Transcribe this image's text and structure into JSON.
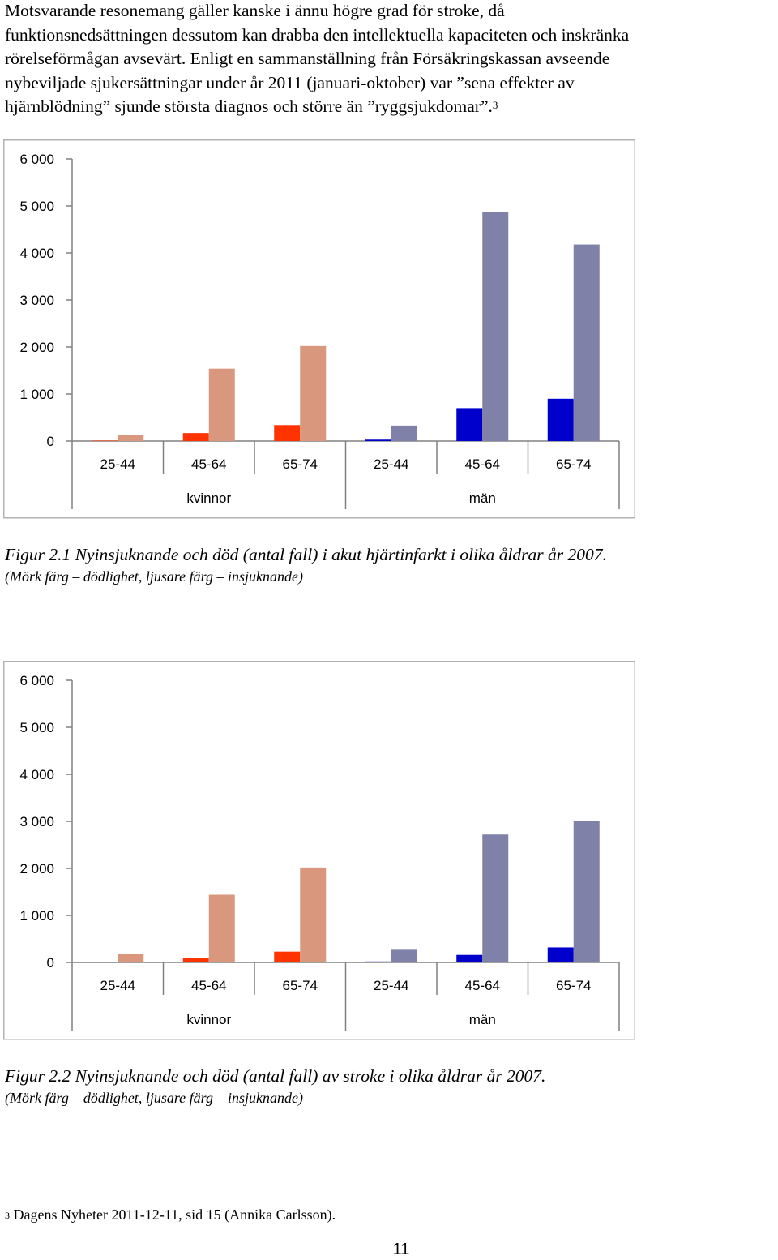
{
  "paragraph": {
    "lines": [
      "Motsvarande resonemang gäller kanske i ännu högre grad för stroke, då",
      "funktionsnedsättningen dessutom kan drabba den intellektuella kapaciteten och inskränka",
      "rörelseförmågan avsevärt. Enligt en sammanställning från Försäkringskassan avseende",
      "nybeviljade sjukersättningar under år 2011 (januari-oktober) var ”sena effekter av",
      "hjärnblödning” sjunde största diagnos och större än ”ryggsjukdomar”."
    ],
    "footnote_ref": "3"
  },
  "chart_data": [
    {
      "type": "bar",
      "title": "",
      "xlabel": "",
      "ylabel": "",
      "ylim": [
        0,
        6000
      ],
      "y_ticks": [
        "6 000",
        "5 000",
        "4 000",
        "3 000",
        "2 000",
        "1 000",
        "0"
      ],
      "categories": [
        "25-44",
        "45-64",
        "65-74",
        "25-44",
        "45-64",
        "65-74"
      ],
      "groups": [
        "kvinnor",
        "män"
      ],
      "series": [
        {
          "values": [
            10,
            170,
            340,
            30,
            700,
            900
          ],
          "colors": [
            "#ff3300",
            "#ff3300",
            "#ff3300",
            "#0000cc",
            "#0000cc",
            "#0000cc"
          ]
        },
        {
          "values": [
            120,
            1540,
            2020,
            330,
            4870,
            4180
          ],
          "colors": [
            "#d9977e",
            "#d9977e",
            "#d9977e",
            "#7f81a8",
            "#7f81a8",
            "#7f81a8"
          ]
        }
      ],
      "grid": false,
      "legend": "none"
    },
    {
      "type": "bar",
      "title": "",
      "xlabel": "",
      "ylabel": "",
      "ylim": [
        0,
        6000
      ],
      "y_ticks": [
        "6 000",
        "5 000",
        "4 000",
        "3 000",
        "2 000",
        "1 000",
        "0"
      ],
      "categories": [
        "25-44",
        "45-64",
        "65-74",
        "25-44",
        "45-64",
        "65-74"
      ],
      "groups": [
        "kvinnor",
        "män"
      ],
      "series": [
        {
          "values": [
            10,
            90,
            230,
            20,
            160,
            320
          ],
          "colors": [
            "#ff3300",
            "#ff3300",
            "#ff3300",
            "#0000cc",
            "#0000cc",
            "#0000cc"
          ]
        },
        {
          "values": [
            190,
            1440,
            2020,
            270,
            2720,
            3010
          ],
          "colors": [
            "#d9977e",
            "#d9977e",
            "#d9977e",
            "#7f81a8",
            "#7f81a8",
            "#7f81a8"
          ]
        }
      ],
      "grid": false,
      "legend": "none"
    }
  ],
  "captions": [
    {
      "line1": "Figur 2.1 Nyinsjuknande och död (antal fall) i akut hjärtinfarkt i olika åldrar år 2007.",
      "line2": "(Mörk färg – dödlighet, ljusare färg – insjuknande)"
    },
    {
      "line1": "Figur 2.2 Nyinsjuknande och död (antal fall) av stroke i olika åldrar år 2007.",
      "line2": "(Mörk färg – dödlighet, ljusare färg – insjuknande)"
    }
  ],
  "footnote": {
    "number": "3",
    "text": "Dagens Nyheter 2011-12-11, sid 15 (Annika Carlsson)."
  },
  "page_number": "11"
}
